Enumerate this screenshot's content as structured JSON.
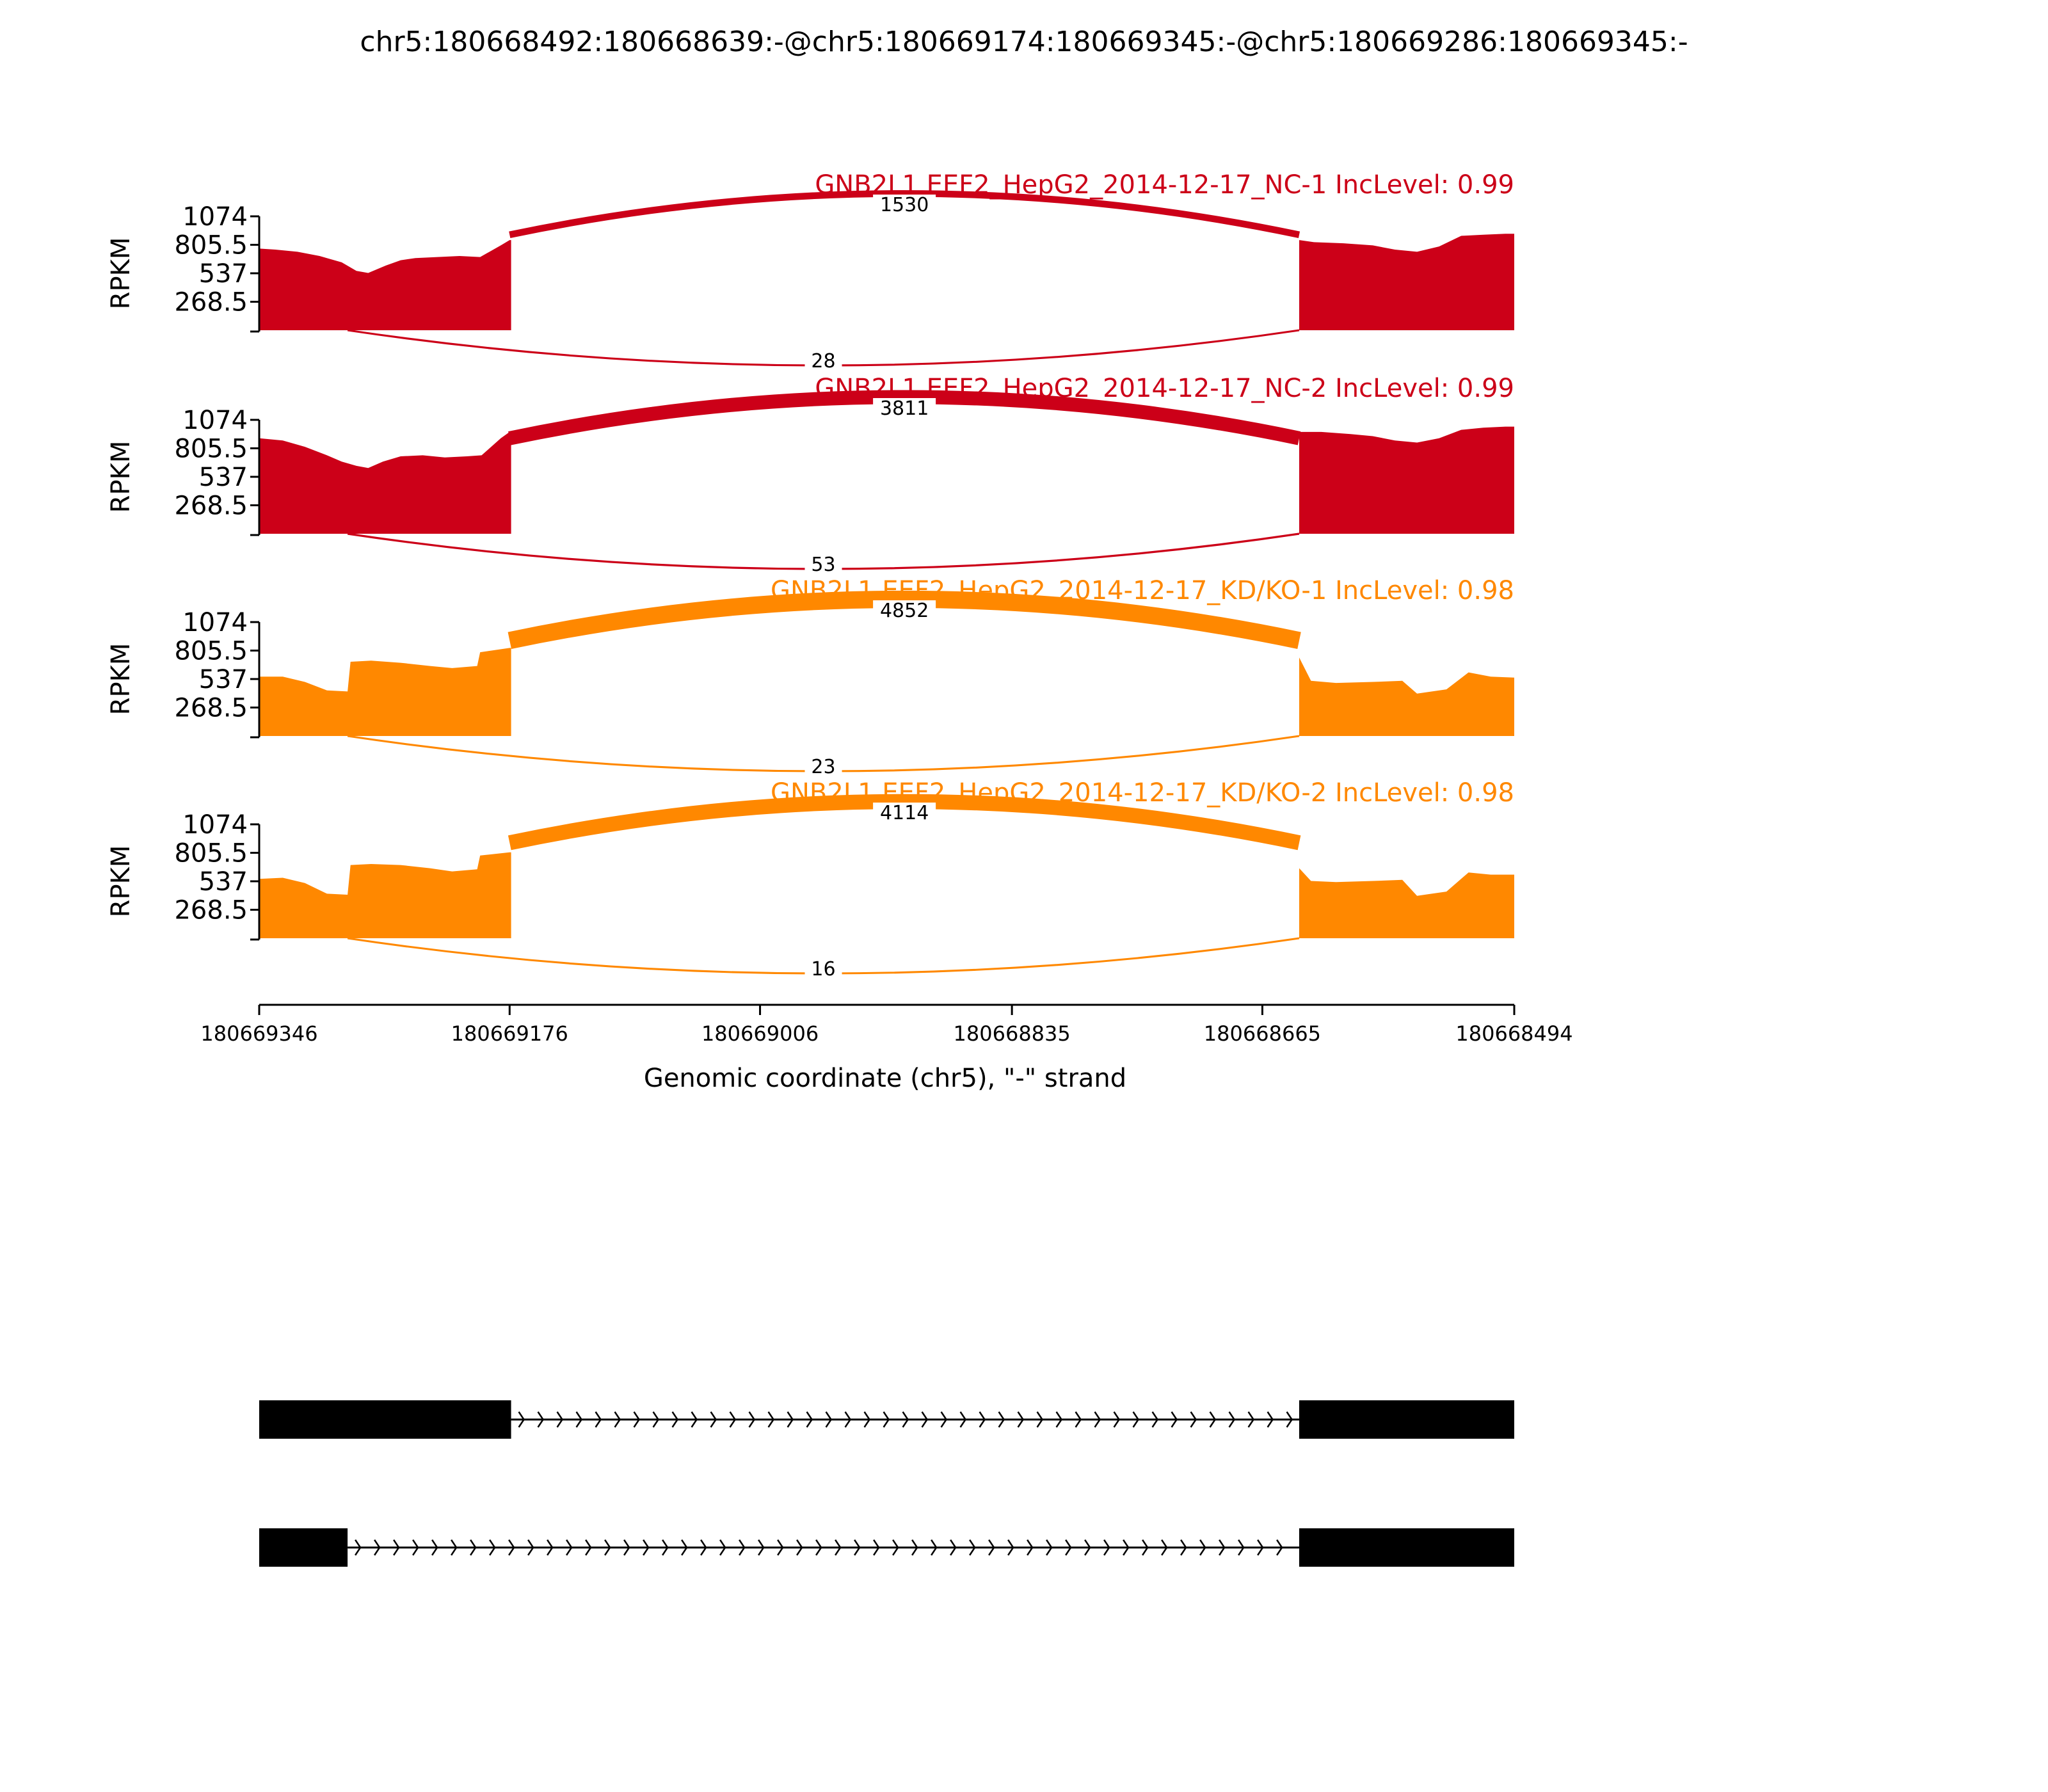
{
  "chart_data": {
    "type": "area",
    "title": "chr5:180668492:180668639:-@chr5:180669174:180669345:-@chr5:180669286:180669345:-",
    "xlabel": "Genomic coordinate (chr5), \"-\" strand",
    "ylabel": "RPKM",
    "xlim": [
      180669346,
      180668494
    ],
    "x_ticks": [
      "180669346",
      "180669176",
      "180669006",
      "180668835",
      "180668665",
      "180668494"
    ],
    "ylim": [
      0,
      1074
    ],
    "y_ticks": [
      "1074",
      "805.5",
      "537",
      "268.5"
    ],
    "grid": false,
    "colors": {
      "NC": "#cc0018",
      "KD": "#ff8800",
      "structure": "#000000"
    },
    "series": [
      {
        "name": "GNB2L1 EEF2_HepG2_2014-12-17_NC-1 IncLevel: 0.99",
        "color": "#cc0018",
        "coverage": {
          "exon_left": [
            [
              180669346,
              770
            ],
            [
              180669335,
              760
            ],
            [
              180669320,
              740
            ],
            [
              180669305,
              700
            ],
            [
              180669290,
              640
            ],
            [
              180669280,
              560
            ],
            [
              180669272,
              540
            ],
            [
              180669260,
              610
            ],
            [
              180669250,
              660
            ],
            [
              180669240,
              680
            ],
            [
              180669225,
              690
            ],
            [
              180669210,
              700
            ],
            [
              180669196,
              690
            ],
            [
              180669182,
              800
            ],
            [
              180669176,
              850
            ],
            [
              180669175,
              850
            ]
          ],
          "exon_right": [
            [
              180668640,
              850
            ],
            [
              180668630,
              830
            ],
            [
              180668610,
              820
            ],
            [
              180668590,
              800
            ],
            [
              180668575,
              760
            ],
            [
              180668560,
              740
            ],
            [
              180668545,
              790
            ],
            [
              180668530,
              890
            ],
            [
              180668515,
              900
            ],
            [
              180668500,
              910
            ],
            [
              180668494,
              910
            ]
          ]
        },
        "junctions": [
          {
            "from": 180669176,
            "to": 180668640,
            "reads": "1530"
          },
          {
            "from": 180669286,
            "to": 180668640,
            "reads": "28"
          }
        ]
      },
      {
        "name": "GNB2L1 EEF2_HepG2_2014-12-17_NC-2 IncLevel: 0.99",
        "color": "#cc0018",
        "coverage": {
          "exon_left": [
            [
              180669346,
              900
            ],
            [
              180669330,
              880
            ],
            [
              180669315,
              820
            ],
            [
              180669300,
              740
            ],
            [
              180669290,
              680
            ],
            [
              180669280,
              640
            ],
            [
              180669272,
              620
            ],
            [
              180669262,
              680
            ],
            [
              180669250,
              730
            ],
            [
              180669235,
              740
            ],
            [
              180669220,
              720
            ],
            [
              180669205,
              730
            ],
            [
              180669195,
              740
            ],
            [
              180669182,
              900
            ],
            [
              180669176,
              960
            ],
            [
              180669175,
              960
            ]
          ],
          "exon_right": [
            [
              180668640,
              960
            ],
            [
              180668625,
              960
            ],
            [
              180668605,
              940
            ],
            [
              180668590,
              920
            ],
            [
              180668575,
              880
            ],
            [
              180668560,
              860
            ],
            [
              180668545,
              900
            ],
            [
              180668530,
              980
            ],
            [
              180668515,
              1000
            ],
            [
              180668500,
              1010
            ],
            [
              180668494,
              1010
            ]
          ]
        },
        "junctions": [
          {
            "from": 180669176,
            "to": 180668640,
            "reads": "3811"
          },
          {
            "from": 180669286,
            "to": 180668640,
            "reads": "53"
          }
        ]
      },
      {
        "name": "GNB2L1 EEF2_HepG2_2014-12-17_KD/KO-1 IncLevel: 0.98",
        "color": "#ff8800",
        "coverage": {
          "exon_left": [
            [
              180669346,
              560
            ],
            [
              180669330,
              560
            ],
            [
              180669315,
              510
            ],
            [
              180669300,
              430
            ],
            [
              180669286,
              420
            ],
            [
              180669284,
              700
            ],
            [
              180669270,
              710
            ],
            [
              180669250,
              690
            ],
            [
              180669230,
              660
            ],
            [
              180669215,
              640
            ],
            [
              180669198,
              660
            ],
            [
              180669196,
              790
            ],
            [
              180669176,
              830
            ],
            [
              180669175,
              830
            ]
          ],
          "exon_right": [
            [
              180668640,
              740
            ],
            [
              180668632,
              520
            ],
            [
              180668615,
              500
            ],
            [
              180668590,
              510
            ],
            [
              180668570,
              520
            ],
            [
              180668560,
              400
            ],
            [
              180668540,
              440
            ],
            [
              180668525,
              600
            ],
            [
              180668510,
              560
            ],
            [
              180668494,
              550
            ]
          ]
        },
        "junctions": [
          {
            "from": 180669176,
            "to": 180668640,
            "reads": "4852"
          },
          {
            "from": 180669286,
            "to": 180668640,
            "reads": "23"
          }
        ]
      },
      {
        "name": "GNB2L1 EEF2_HepG2_2014-12-17_KD/KO-2 IncLevel: 0.98",
        "color": "#ff8800",
        "coverage": {
          "exon_left": [
            [
              180669346,
              560
            ],
            [
              180669330,
              570
            ],
            [
              180669315,
              520
            ],
            [
              180669300,
              420
            ],
            [
              180669286,
              410
            ],
            [
              180669284,
              690
            ],
            [
              180669270,
              700
            ],
            [
              180669250,
              690
            ],
            [
              180669230,
              660
            ],
            [
              180669215,
              630
            ],
            [
              180669198,
              650
            ],
            [
              180669196,
              780
            ],
            [
              180669176,
              810
            ],
            [
              180669175,
              810
            ]
          ],
          "exon_right": [
            [
              180668640,
              660
            ],
            [
              180668632,
              540
            ],
            [
              180668615,
              530
            ],
            [
              180668590,
              540
            ],
            [
              180668570,
              550
            ],
            [
              180668560,
              400
            ],
            [
              180668540,
              440
            ],
            [
              180668525,
              620
            ],
            [
              180668510,
              600
            ],
            [
              180668494,
              600
            ]
          ]
        },
        "junctions": [
          {
            "from": 180669176,
            "to": 180668640,
            "reads": "4114"
          },
          {
            "from": 180669286,
            "to": 180668640,
            "reads": "16"
          }
        ]
      }
    ],
    "isoforms": [
      {
        "exons": [
          [
            180669346,
            180669175
          ],
          [
            180668640,
            180668494
          ]
        ]
      },
      {
        "exons": [
          [
            180669346,
            180669286
          ],
          [
            180668640,
            180668494
          ]
        ]
      }
    ]
  }
}
